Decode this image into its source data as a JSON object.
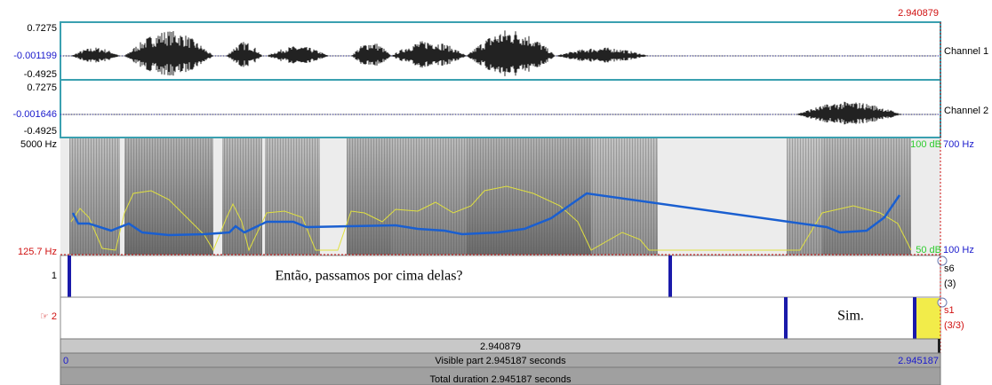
{
  "top_time": "2.940879",
  "channels": [
    {
      "max": "0.7275",
      "mid": "-0.001199",
      "min": "-0.4925",
      "label": "Channel 1"
    },
    {
      "max": "0.7275",
      "mid": "-0.001646",
      "min": "-0.4925",
      "label": "Channel 2"
    }
  ],
  "spectrogram": {
    "freq_top": "5000 Hz",
    "freq_bottom": "125.7 Hz",
    "db_top": "100 dB",
    "pitch_top": "700 Hz",
    "db_bottom": "50 dB",
    "pitch_bottom": "100 Hz"
  },
  "tiers": [
    {
      "number": "1",
      "interval_text": "Então, passamos por cima delas?",
      "name": "s6",
      "count": "(3)"
    },
    {
      "number": "☞ 2",
      "interval_text": "Sim.",
      "name": "s1",
      "count": "(3/3)"
    }
  ],
  "footer": {
    "selection": "2.940879",
    "start": "0",
    "visible": "Visible part 2.945187 seconds",
    "end": "2.945187",
    "total": "Total duration 2.945187 seconds"
  }
}
